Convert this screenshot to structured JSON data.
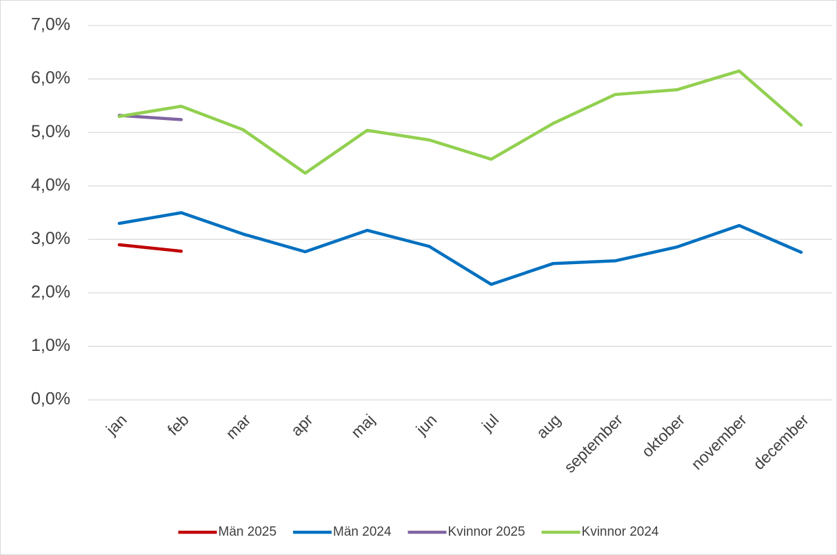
{
  "chart_data": {
    "type": "line",
    "categories": [
      "jan",
      "feb",
      "mar",
      "apr",
      "maj",
      "jun",
      "jul",
      "aug",
      "september",
      "oktober",
      "november",
      "december"
    ],
    "series": [
      {
        "name": "Män 2025",
        "color": "#c00000",
        "values": [
          2.9,
          2.78,
          null,
          null,
          null,
          null,
          null,
          null,
          null,
          null,
          null,
          null
        ]
      },
      {
        "name": "Män 2024",
        "color": "#0070c0",
        "values": [
          3.3,
          3.5,
          3.1,
          2.77,
          3.17,
          2.87,
          2.16,
          2.55,
          2.6,
          2.86,
          3.26,
          2.76
        ]
      },
      {
        "name": "Kvinnor 2025",
        "color": "#8064a2",
        "values": [
          5.32,
          5.24,
          null,
          null,
          null,
          null,
          null,
          null,
          null,
          null,
          null,
          null
        ]
      },
      {
        "name": "Kvinnor 2024",
        "color": "#92d050",
        "values": [
          5.3,
          5.49,
          5.05,
          4.24,
          5.04,
          4.86,
          4.5,
          5.17,
          5.71,
          5.8,
          6.15,
          5.14
        ]
      }
    ],
    "ylim": [
      0,
      7
    ],
    "yticks": [
      {
        "value": 0,
        "label": "0,0%"
      },
      {
        "value": 1,
        "label": "1,0%"
      },
      {
        "value": 2,
        "label": "2,0%"
      },
      {
        "value": 3,
        "label": "3,0%"
      },
      {
        "value": 4,
        "label": "4,0%"
      },
      {
        "value": 5,
        "label": "5,0%"
      },
      {
        "value": 6,
        "label": "6,0%"
      },
      {
        "value": 7,
        "label": "7,0%"
      }
    ],
    "grid": true,
    "legend": "bottom"
  }
}
